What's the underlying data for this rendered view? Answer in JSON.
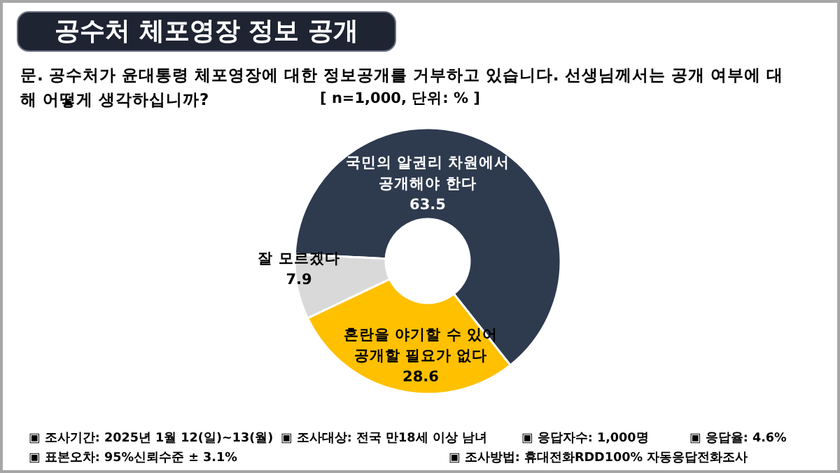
{
  "chart_data": {
    "type": "donut",
    "title": "공수처 체포영장 정보 공개",
    "subtitle": "문. 공수처가 윤대통령 체포영장에 대한 정보공개를 거부하고 있습니다. 선생님께서는 공개 여부에 대해 어떻게 생각하십니까?",
    "categories": [
      "국민의 알권리 차원에서\n공개해야 한다",
      "혼란을 야기할 수 있어\n공개할 필요가 없다",
      "잘 모르겠다"
    ],
    "values": [
      63.5,
      28.6,
      7.9
    ],
    "colors": [
      "#2e3a4e",
      "#ffc000",
      "#d9d9d9"
    ],
    "data_labels": true,
    "annotations": [
      "[ n=1,000, 단위: % ]",
      "▣ 조사기간: 2025년 1월 12(일)~13(월)",
      "▣ 조사대상: 전국 만18세 이상 남녀",
      "▣ 응답자수: 1,000명",
      "▣ 응답율: 4.6%",
      "▣ 표본오차: 95%신뢰수준 ± 3.1%",
      "▣ 조사방법: 휴대전화RDD100% 자동응답전화조사"
    ]
  }
}
